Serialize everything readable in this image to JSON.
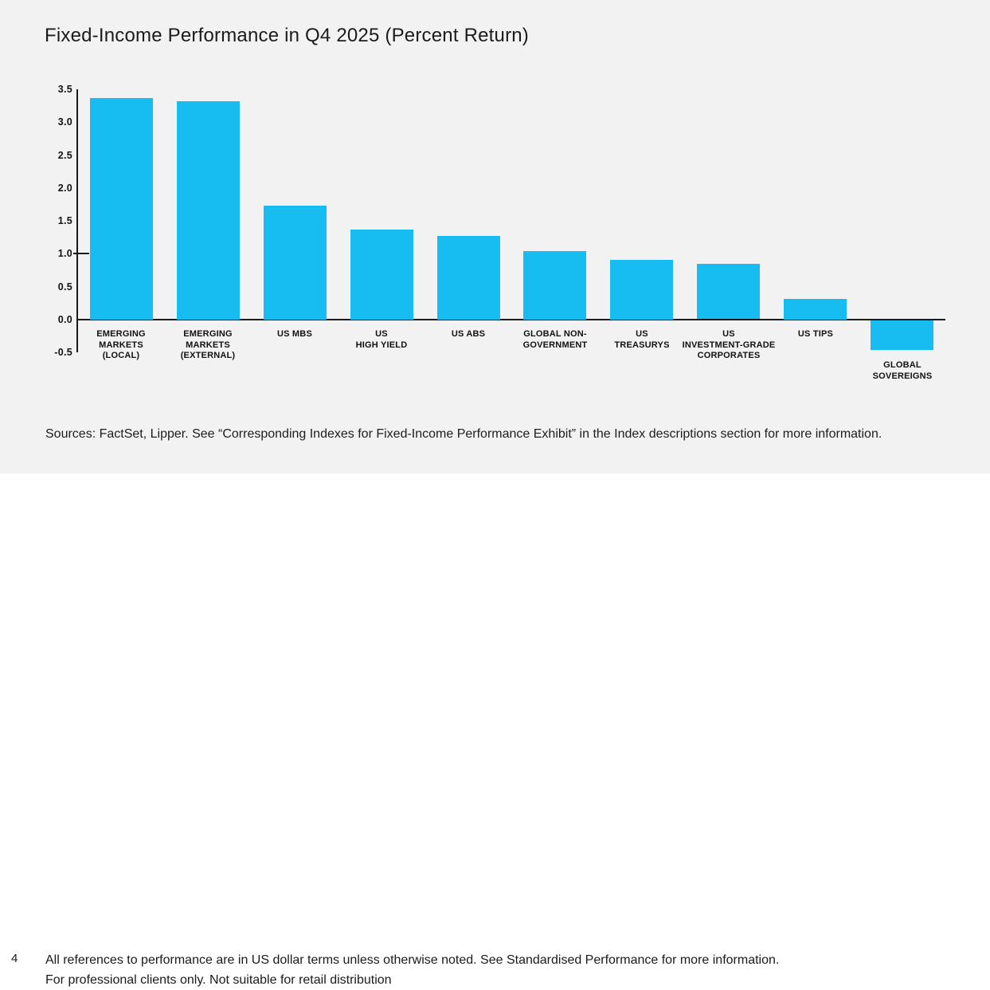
{
  "source_note": "Sources: FactSet, Lipper. See “Corresponding Indexes for Fixed-Income Performance Exhibit” in the Index descriptions section for more information.",
  "footer": {
    "page_number": "4",
    "line1": "All references to performance are in US dollar terms unless otherwise noted. See Standardised Performance for more information.",
    "line2": "For professional clients only. Not suitable for retail distribution"
  },
  "colors": {
    "bar": "#17bdf0",
    "chart_background": "#f2f2f2",
    "footer_background": "#ffffff",
    "axis": "#1a1a1a",
    "text": "#111111"
  },
  "chart_data": {
    "type": "bar",
    "title": "Fixed-Income Performance in Q4 2025 (Percent Return)",
    "categories": [
      [
        "EMERGING",
        "MARKETS",
        "(LOCAL)"
      ],
      [
        "EMERGING",
        "MARKETS",
        "(EXTERNAL)"
      ],
      [
        "US MBS"
      ],
      [
        "US",
        "HIGH YIELD"
      ],
      [
        "US ABS"
      ],
      [
        "GLOBAL NON-",
        "GOVERNMENT"
      ],
      [
        "US",
        "TREASURYS"
      ],
      [
        "US",
        "INVESTMENT-GRADE",
        "CORPORATES"
      ],
      [
        "US TIPS"
      ],
      [
        "GLOBAL",
        "SOVEREIGNS"
      ]
    ],
    "values": [
      3.37,
      3.32,
      1.73,
      1.37,
      1.27,
      1.04,
      0.91,
      0.84,
      0.31,
      -0.45
    ],
    "xlabel": "",
    "ylabel": "",
    "ylim": [
      -0.5,
      3.5
    ],
    "ytick_interval": 0.5,
    "ytick_labels": [
      "3.5",
      "3.0",
      "2.5",
      "2.0",
      "1.5",
      "1.0",
      "0.5",
      "0.0",
      "-0.5"
    ],
    "ytick_marks": [
      1.0
    ],
    "grid": false,
    "legend": false
  }
}
